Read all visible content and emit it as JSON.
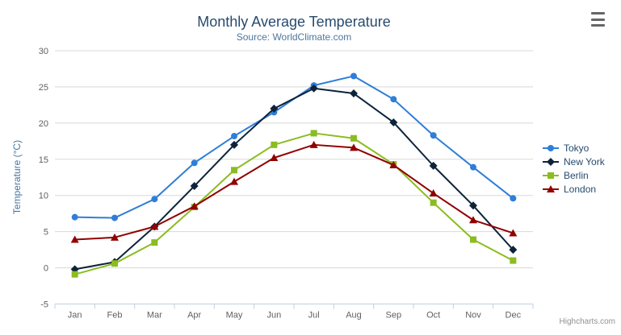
{
  "chart_data": {
    "type": "line",
    "title": "Monthly Average Temperature",
    "subtitle": "Source: WorldClimate.com",
    "categories": [
      "Jan",
      "Feb",
      "Mar",
      "Apr",
      "May",
      "Jun",
      "Jul",
      "Aug",
      "Sep",
      "Oct",
      "Nov",
      "Dec"
    ],
    "series": [
      {
        "name": "Tokyo",
        "color": "#2f7ed8",
        "marker": "circle",
        "values": [
          7.0,
          6.9,
          9.5,
          14.5,
          18.2,
          21.5,
          25.2,
          26.5,
          23.3,
          18.3,
          13.9,
          9.6
        ]
      },
      {
        "name": "New York",
        "color": "#0d233a",
        "marker": "diamond",
        "values": [
          -0.2,
          0.8,
          5.7,
          11.3,
          17.0,
          22.0,
          24.8,
          24.1,
          20.1,
          14.1,
          8.6,
          2.5
        ]
      },
      {
        "name": "Berlin",
        "color": "#8bbc21",
        "marker": "square",
        "values": [
          -0.9,
          0.6,
          3.5,
          8.4,
          13.5,
          17.0,
          18.6,
          17.9,
          14.3,
          9.0,
          3.9,
          1.0
        ]
      },
      {
        "name": "London",
        "color": "#910000",
        "marker": "triangle",
        "values": [
          3.9,
          4.2,
          5.7,
          8.5,
          11.9,
          15.2,
          17.0,
          16.6,
          14.2,
          10.3,
          6.6,
          4.8
        ]
      }
    ],
    "xlabel": "",
    "ylabel": "Temperature (°C)",
    "ylim": [
      -5,
      30
    ],
    "tick_interval": 5,
    "grid": true,
    "legend_position": "right"
  },
  "credits": "Highcharts.com",
  "styles": {
    "grid_color": "#d8d8d8",
    "axis_line_color": "#c0d0e0",
    "tick_label_color": "#606060",
    "title_color": "#274b6d",
    "subtitle_color": "#4d759e",
    "legend_text_color": "#274b6d",
    "credits_color": "#909090"
  }
}
